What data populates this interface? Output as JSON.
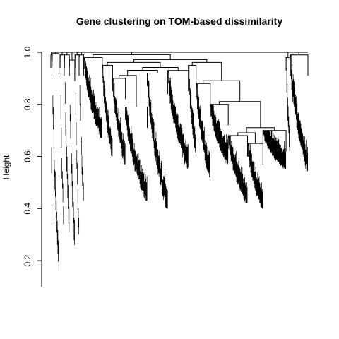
{
  "chart_data": {
    "type": "dendrogram",
    "title": "Gene clustering on TOM-based dissimilarity",
    "xlabel": "",
    "ylabel": "Height",
    "ylim": [
      0.1,
      1.0
    ],
    "y_ticks": [
      "0.2",
      "0.4",
      "0.6",
      "0.8",
      "1.0"
    ],
    "y_tick_values": [
      0.2,
      0.4,
      0.6,
      0.8,
      1.0
    ],
    "grid": false,
    "legend": "none",
    "clusters": [
      {
        "start": 0.0,
        "end": 0.004,
        "merge": 0.99,
        "min": 0.35
      },
      {
        "start": 0.005,
        "end": 0.032,
        "merge": 0.995,
        "min": 0.16
      },
      {
        "start": 0.036,
        "end": 0.052,
        "merge": 0.99,
        "min": 0.29
      },
      {
        "start": 0.053,
        "end": 0.072,
        "merge": 0.99,
        "min": 0.31
      },
      {
        "start": 0.072,
        "end": 0.093,
        "merge": 0.97,
        "min": 0.26
      },
      {
        "start": 0.094,
        "end": 0.11,
        "merge": 0.99,
        "min": 0.3
      },
      {
        "start": 0.11,
        "end": 0.128,
        "merge": 0.99,
        "min": 0.43
      },
      {
        "start": 0.128,
        "end": 0.2,
        "merge": 0.98,
        "min": 0.67
      },
      {
        "start": 0.2,
        "end": 0.24,
        "merge": 0.95,
        "min": 0.6
      },
      {
        "start": 0.24,
        "end": 0.29,
        "merge": 0.9,
        "min": 0.57
      },
      {
        "start": 0.29,
        "end": 0.375,
        "merge": 0.79,
        "min": 0.43
      },
      {
        "start": 0.375,
        "end": 0.455,
        "merge": 0.92,
        "min": 0.4
      },
      {
        "start": 0.455,
        "end": 0.535,
        "merge": 0.93,
        "min": 0.55
      },
      {
        "start": 0.535,
        "end": 0.565,
        "merge": 0.95,
        "min": 0.6
      },
      {
        "start": 0.565,
        "end": 0.62,
        "merge": 0.88,
        "min": 0.52
      },
      {
        "start": 0.62,
        "end": 0.69,
        "merge": 0.8,
        "min": 0.57
      },
      {
        "start": 0.69,
        "end": 0.765,
        "merge": 0.68,
        "min": 0.42
      },
      {
        "start": 0.765,
        "end": 0.825,
        "merge": 0.65,
        "min": 0.4
      },
      {
        "start": 0.825,
        "end": 0.915,
        "merge": 0.7,
        "min": 0.55
      },
      {
        "start": 0.915,
        "end": 0.93,
        "merge": 0.98,
        "min": 0.62
      },
      {
        "start": 0.93,
        "end": 1.0,
        "merge": 0.99,
        "min": 0.54
      }
    ],
    "upper_merges": [
      0.995,
      0.99,
      0.98,
      0.97,
      0.95,
      0.93,
      0.92,
      0.9,
      0.88,
      0.82,
      0.8,
      0.79,
      0.7,
      0.68,
      0.65
    ]
  }
}
